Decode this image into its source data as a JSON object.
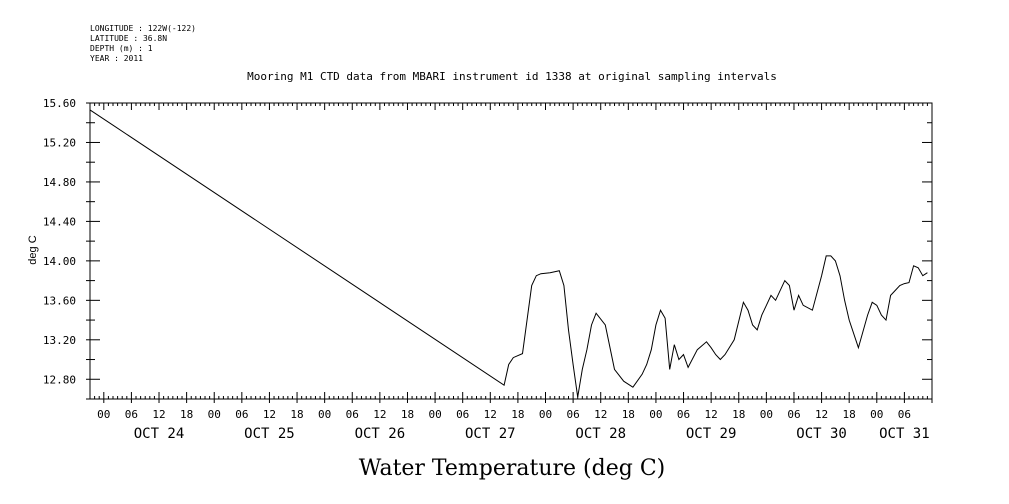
{
  "header_info": [
    "LONGITUDE : 122W(-122)",
    "LATITUDE : 36.8N",
    "DEPTH (m) : 1",
    "YEAR : 2011"
  ],
  "chart_data": {
    "type": "line",
    "title": "Mooring M1 CTD data from MBARI instrument id 1338 at original sampling intervals",
    "xlabel": "Water Temperature (deg C)",
    "ylabel": "deg C",
    "line_color": "#000000",
    "grid": false,
    "ylim": [
      12.6,
      15.6
    ],
    "y_ticks": [
      "15.60",
      "15.20",
      "14.80",
      "14.40",
      "14.00",
      "13.60",
      "13.20",
      "12.80"
    ],
    "xlim": [
      "2011-10-23 21:00",
      "2011-10-31 12:00"
    ],
    "x_hour_labels": [
      {
        "t": "2011-10-24 00:00",
        "label": "00"
      },
      {
        "t": "2011-10-24 06:00",
        "label": "06"
      },
      {
        "t": "2011-10-24 12:00",
        "label": "12"
      },
      {
        "t": "2011-10-24 18:00",
        "label": "18"
      },
      {
        "t": "2011-10-25 00:00",
        "label": "00"
      },
      {
        "t": "2011-10-25 06:00",
        "label": "06"
      },
      {
        "t": "2011-10-25 12:00",
        "label": "12"
      },
      {
        "t": "2011-10-25 18:00",
        "label": "18"
      },
      {
        "t": "2011-10-26 00:00",
        "label": "00"
      },
      {
        "t": "2011-10-26 06:00",
        "label": "06"
      },
      {
        "t": "2011-10-26 12:00",
        "label": "12"
      },
      {
        "t": "2011-10-26 18:00",
        "label": "18"
      },
      {
        "t": "2011-10-27 00:00",
        "label": "00"
      },
      {
        "t": "2011-10-27 06:00",
        "label": "06"
      },
      {
        "t": "2011-10-27 12:00",
        "label": "12"
      },
      {
        "t": "2011-10-27 18:00",
        "label": "18"
      },
      {
        "t": "2011-10-28 00:00",
        "label": "00"
      },
      {
        "t": "2011-10-28 06:00",
        "label": "06"
      },
      {
        "t": "2011-10-28 12:00",
        "label": "12"
      },
      {
        "t": "2011-10-28 18:00",
        "label": "18"
      },
      {
        "t": "2011-10-29 00:00",
        "label": "00"
      },
      {
        "t": "2011-10-29 06:00",
        "label": "06"
      },
      {
        "t": "2011-10-29 12:00",
        "label": "12"
      },
      {
        "t": "2011-10-29 18:00",
        "label": "18"
      },
      {
        "t": "2011-10-30 00:00",
        "label": "00"
      },
      {
        "t": "2011-10-30 06:00",
        "label": "06"
      },
      {
        "t": "2011-10-30 12:00",
        "label": "12"
      },
      {
        "t": "2011-10-30 18:00",
        "label": "18"
      },
      {
        "t": "2011-10-31 00:00",
        "label": "00"
      },
      {
        "t": "2011-10-31 06:00",
        "label": "06"
      }
    ],
    "x_day_labels": [
      {
        "t": "2011-10-24 12:00",
        "label": "OCT 24"
      },
      {
        "t": "2011-10-25 12:00",
        "label": "OCT 25"
      },
      {
        "t": "2011-10-26 12:00",
        "label": "OCT 26"
      },
      {
        "t": "2011-10-27 12:00",
        "label": "OCT 27"
      },
      {
        "t": "2011-10-28 12:00",
        "label": "OCT 28"
      },
      {
        "t": "2011-10-29 12:00",
        "label": "OCT 29"
      },
      {
        "t": "2011-10-30 12:00",
        "label": "OCT 30"
      },
      {
        "t": "2011-10-31 06:00",
        "label": "OCT 31"
      }
    ],
    "series": [
      {
        "x": [
          "2011-10-23 21:00",
          "2011-10-27 15:00",
          "2011-10-27 16:00",
          "2011-10-27 17:00",
          "2011-10-27 19:00",
          "2011-10-27 21:00",
          "2011-10-27 22:00",
          "2011-10-27 23:00",
          "2011-10-28 01:00",
          "2011-10-28 03:00",
          "2011-10-28 04:00",
          "2011-10-28 05:00",
          "2011-10-28 06:00",
          "2011-10-28 07:00",
          "2011-10-28 08:00",
          "2011-10-28 09:00",
          "2011-10-28 10:00",
          "2011-10-28 11:00",
          "2011-10-28 13:00",
          "2011-10-28 15:00",
          "2011-10-28 17:00",
          "2011-10-28 19:00",
          "2011-10-28 21:00",
          "2011-10-28 22:00",
          "2011-10-28 23:00",
          "2011-10-29 00:00",
          "2011-10-29 01:00",
          "2011-10-29 02:00",
          "2011-10-29 03:00",
          "2011-10-29 04:00",
          "2011-10-29 05:00",
          "2011-10-29 06:00",
          "2011-10-29 07:00",
          "2011-10-29 09:00",
          "2011-10-29 11:00",
          "2011-10-29 12:00",
          "2011-10-29 13:00",
          "2011-10-29 14:00",
          "2011-10-29 15:00",
          "2011-10-29 17:00",
          "2011-10-29 19:00",
          "2011-10-29 20:00",
          "2011-10-29 21:00",
          "2011-10-29 22:00",
          "2011-10-29 23:00",
          "2011-10-30 00:00",
          "2011-10-30 01:00",
          "2011-10-30 02:00",
          "2011-10-30 04:00",
          "2011-10-30 05:00",
          "2011-10-30 06:00",
          "2011-10-30 07:00",
          "2011-10-30 08:00",
          "2011-10-30 10:00",
          "2011-10-30 12:00",
          "2011-10-30 13:00",
          "2011-10-30 14:00",
          "2011-10-30 15:00",
          "2011-10-30 16:00",
          "2011-10-30 17:00",
          "2011-10-30 18:00",
          "2011-10-30 20:00",
          "2011-10-30 22:00",
          "2011-10-30 23:00",
          "2011-10-31 00:00",
          "2011-10-31 01:00",
          "2011-10-31 02:00",
          "2011-10-31 03:00",
          "2011-10-31 04:00",
          "2011-10-31 05:00",
          "2011-10-31 06:00",
          "2011-10-31 07:00",
          "2011-10-31 08:00",
          "2011-10-31 09:00",
          "2011-10-31 10:00",
          "2011-10-31 11:00"
        ],
        "y": [
          15.53,
          12.74,
          12.95,
          13.02,
          13.06,
          13.75,
          13.85,
          13.87,
          13.88,
          13.9,
          13.75,
          13.3,
          12.95,
          12.62,
          12.9,
          13.1,
          13.35,
          13.47,
          13.35,
          12.9,
          12.78,
          12.72,
          12.85,
          12.95,
          13.1,
          13.35,
          13.5,
          13.42,
          12.9,
          13.15,
          13.0,
          13.05,
          12.92,
          13.1,
          13.18,
          13.12,
          13.05,
          13.0,
          13.05,
          13.2,
          13.58,
          13.5,
          13.35,
          13.3,
          13.45,
          13.55,
          13.65,
          13.6,
          13.8,
          13.75,
          13.5,
          13.65,
          13.55,
          13.5,
          13.85,
          14.05,
          14.05,
          14.0,
          13.85,
          13.6,
          13.4,
          13.12,
          13.45,
          13.58,
          13.55,
          13.45,
          13.4,
          13.65,
          13.7,
          13.75,
          13.77,
          13.78,
          13.95,
          13.93,
          13.85,
          13.88
        ]
      }
    ]
  }
}
